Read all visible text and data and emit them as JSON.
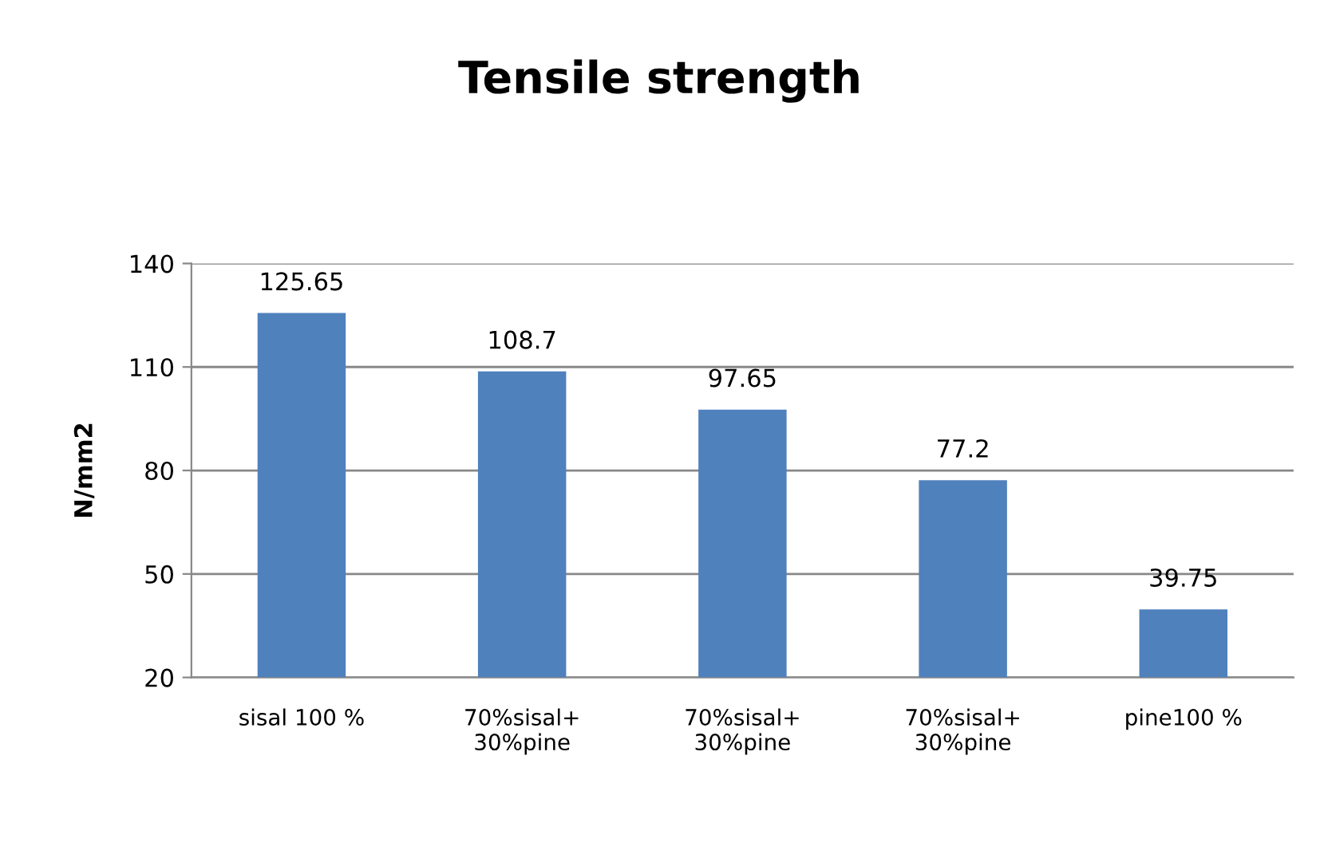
{
  "chart_data": {
    "type": "bar",
    "title": "Tensile strength",
    "ylabel": "N/mm2",
    "categories": [
      "sisal 100 %",
      "70%sisal+\n30%pine",
      "70%sisal+\n30%pine",
      "70%sisal+\n30%pine",
      "pine100 %"
    ],
    "values": [
      125.65,
      108.7,
      97.65,
      77.2,
      39.75
    ],
    "color": "#4f81bd",
    "ylim": [
      20,
      140
    ],
    "yticks": [
      20,
      50,
      80,
      110,
      140
    ],
    "grid": "y",
    "data_labels": true,
    "legend": false
  }
}
